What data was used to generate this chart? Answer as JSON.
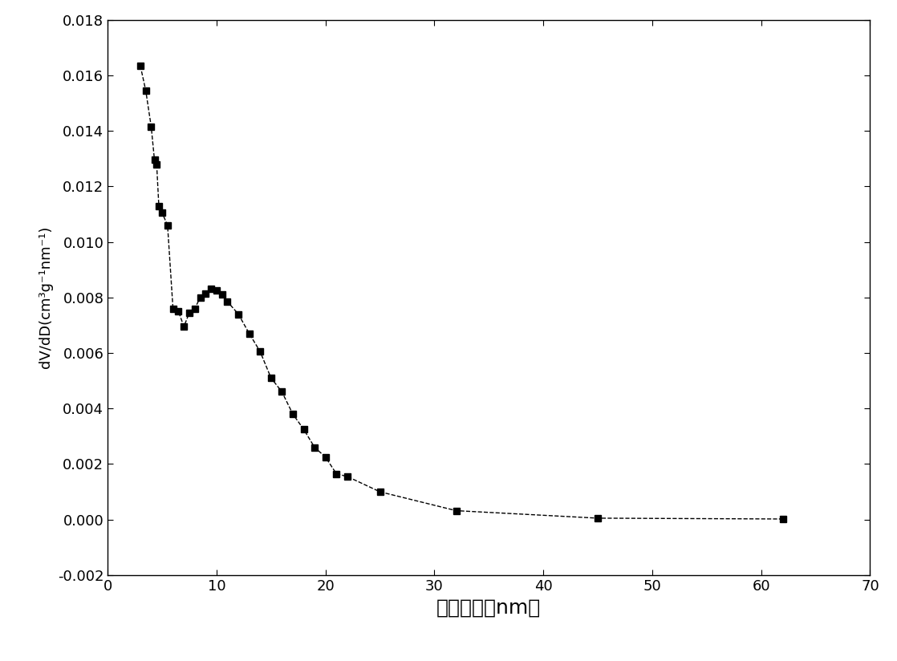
{
  "x": [
    3.0,
    3.5,
    4.0,
    4.3,
    4.5,
    4.7,
    5.0,
    5.5,
    6.0,
    6.5,
    7.0,
    7.5,
    8.0,
    8.5,
    9.0,
    9.5,
    10.0,
    10.5,
    11.0,
    12.0,
    13.0,
    14.0,
    15.0,
    16.0,
    17.0,
    18.0,
    19.0,
    20.0,
    21.0,
    22.0,
    25.0,
    32.0,
    45.0,
    62.0
  ],
  "y": [
    0.01635,
    0.01545,
    0.01415,
    0.01295,
    0.0128,
    0.0113,
    0.01105,
    0.0106,
    0.0076,
    0.0075,
    0.00695,
    0.00745,
    0.0076,
    0.008,
    0.00815,
    0.0083,
    0.00825,
    0.0081,
    0.00785,
    0.0074,
    0.0067,
    0.00605,
    0.0051,
    0.0046,
    0.0038,
    0.00325,
    0.0026,
    0.00225,
    0.00165,
    0.00155,
    0.001,
    0.00032,
    5e-05,
    2e-05
  ],
  "xlabel": "孔径分布（nm）",
  "ylabel": "dV/dD(cm³g⁻¹nm⁻¹)",
  "xlim": [
    0,
    70
  ],
  "ylim": [
    -0.002,
    0.018
  ],
  "xticks": [
    0,
    10,
    20,
    30,
    40,
    50,
    60,
    70
  ],
  "yticks": [
    -0.002,
    0.0,
    0.002,
    0.004,
    0.006,
    0.008,
    0.01,
    0.012,
    0.014,
    0.016,
    0.018
  ],
  "line_color": "#000000",
  "marker": "s",
  "marker_size": 6,
  "line_style": "--",
  "line_width": 1.0,
  "xlabel_fontsize": 18,
  "ylabel_fontsize": 13,
  "tick_fontsize": 13,
  "background_color": "#ffffff",
  "figure_width": 11.18,
  "figure_height": 8.24,
  "dpi": 100
}
